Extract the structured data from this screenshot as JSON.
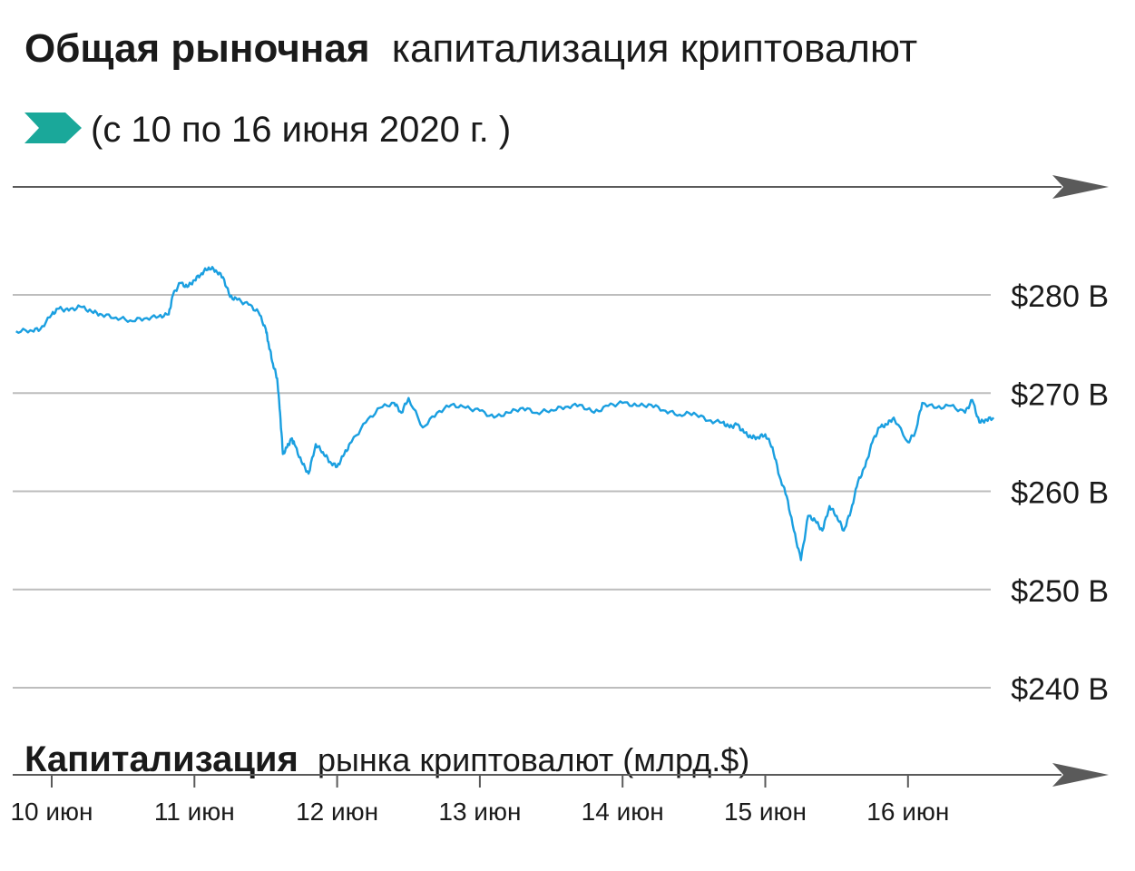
{
  "title": {
    "bold": "Общая рыночная",
    "regular": "капитализация криптовалют"
  },
  "subtitle": "(с 10 по 16 июня 2020 г. )",
  "colors": {
    "line": "#1a9fe0",
    "arrow_teal": "#1aa89a",
    "arrow_gray": "#5a5a5a",
    "grid": "#bdbdbd",
    "text": "#1a1a1a"
  },
  "icons": {
    "subtitle_marker": "teal-arrow-icon",
    "top_axis_end": "gray-arrow-icon",
    "bottom_axis_end": "gray-arrow-icon"
  },
  "chart_data": {
    "type": "line",
    "ylabel_bold": "Капитализация",
    "ylabel_regular": "рынка криптовалют (млрд.$)",
    "ylim": [
      240,
      286
    ],
    "y_ticks": [
      {
        "value": 280,
        "label": "$280 B"
      },
      {
        "value": 270,
        "label": "$270 B"
      },
      {
        "value": 260,
        "label": "$260 B"
      },
      {
        "value": 250,
        "label": "$250 B"
      },
      {
        "value": 240,
        "label": "$240 B"
      }
    ],
    "x_ticks": [
      {
        "day": 10,
        "label": "10 июн"
      },
      {
        "day": 11,
        "label": "11 июн"
      },
      {
        "day": 12,
        "label": "12 июн"
      },
      {
        "day": 13,
        "label": "13 июн"
      },
      {
        "day": 14,
        "label": "14 июн"
      },
      {
        "day": 15,
        "label": "15 июн"
      },
      {
        "day": 16,
        "label": "16 июн"
      }
    ],
    "grid": true,
    "series": [
      {
        "x": [
          9.75,
          9.85,
          9.92,
          10.0,
          10.05,
          10.12,
          10.2,
          10.28,
          10.35,
          10.45,
          10.55,
          10.65,
          10.75,
          10.82,
          10.85,
          10.9,
          10.95,
          11.0,
          11.05,
          11.1,
          11.15,
          11.2,
          11.25,
          11.3,
          11.38,
          11.45,
          11.5,
          11.52,
          11.55,
          11.58,
          11.6,
          11.62,
          11.65,
          11.68,
          11.7,
          11.75,
          11.8,
          11.85,
          11.9,
          11.95,
          12.0,
          12.05,
          12.1,
          12.2,
          12.3,
          12.4,
          12.45,
          12.5,
          12.6,
          12.7,
          12.8,
          12.9,
          13.0,
          13.1,
          13.2,
          13.3,
          13.4,
          13.5,
          13.6,
          13.7,
          13.8,
          13.9,
          14.0,
          14.1,
          14.2,
          14.3,
          14.4,
          14.5,
          14.6,
          14.7,
          14.75,
          14.8,
          14.85,
          14.9,
          14.95,
          15.0,
          15.05,
          15.1,
          15.15,
          15.2,
          15.25,
          15.3,
          15.35,
          15.4,
          15.45,
          15.5,
          15.55,
          15.6,
          15.65,
          15.7,
          15.75,
          15.8,
          15.85,
          15.9,
          16.0,
          16.05,
          16.1,
          16.2,
          16.3,
          16.4,
          16.45,
          16.5,
          16.55,
          16.6
        ],
        "y": [
          276.3,
          276.4,
          276.5,
          278.0,
          278.6,
          278.4,
          278.8,
          278.3,
          278.0,
          277.7,
          277.4,
          277.6,
          277.8,
          278.0,
          280.0,
          281.2,
          280.8,
          281.5,
          282.2,
          282.8,
          282.5,
          281.8,
          279.8,
          279.5,
          279.0,
          278.2,
          276.5,
          275.0,
          273.0,
          271.5,
          268.0,
          263.8,
          264.5,
          265.3,
          264.8,
          263.0,
          261.8,
          264.8,
          264.0,
          263.0,
          262.5,
          263.8,
          265.0,
          267.0,
          268.5,
          269.0,
          268.0,
          269.5,
          266.5,
          268.0,
          268.8,
          268.5,
          268.2,
          267.5,
          268.0,
          268.5,
          268.0,
          268.3,
          268.6,
          268.8,
          268.0,
          268.7,
          269.0,
          268.7,
          268.8,
          268.2,
          267.8,
          268.0,
          267.2,
          267.0,
          266.5,
          266.8,
          266.0,
          265.5,
          265.5,
          265.8,
          264.5,
          261.5,
          259.5,
          256.0,
          253.0,
          257.5,
          257.0,
          256.0,
          258.5,
          257.5,
          256.0,
          258.0,
          261.0,
          262.5,
          265.0,
          266.5,
          266.8,
          267.5,
          265.0,
          266.0,
          269.0,
          268.5,
          268.7,
          268.0,
          269.3,
          267.0,
          267.3,
          267.5
        ]
      }
    ]
  }
}
